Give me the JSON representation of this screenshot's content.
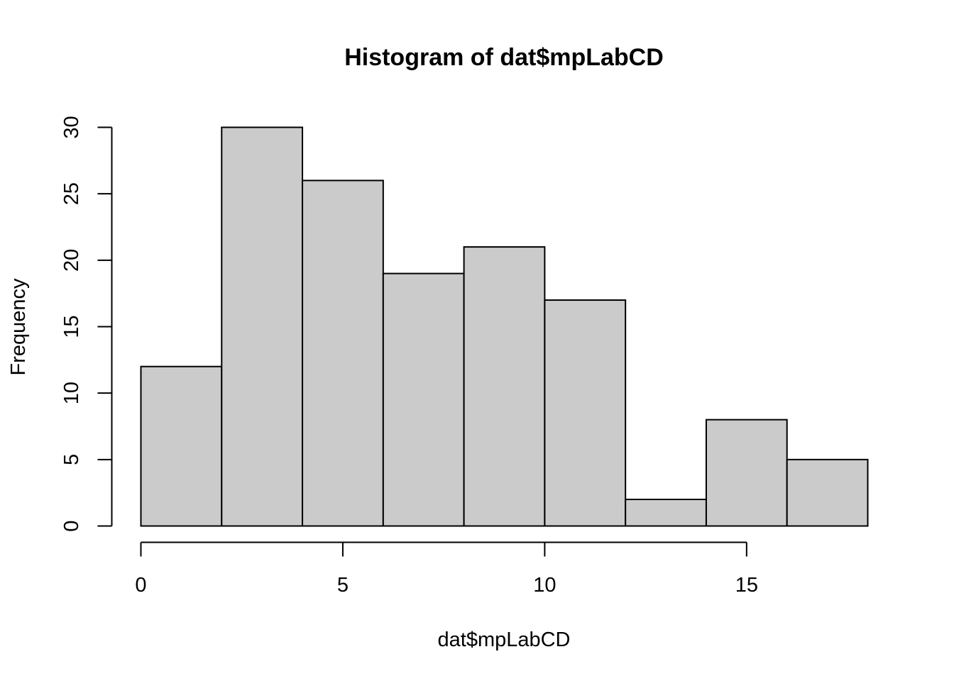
{
  "chart_data": {
    "type": "bar",
    "title": "Histogram of dat$mpLabCD",
    "xlabel": "dat$mpLabCD",
    "ylabel": "Frequency",
    "bins": [
      {
        "from": 0,
        "to": 2,
        "count": 12
      },
      {
        "from": 2,
        "to": 4,
        "count": 30
      },
      {
        "from": 4,
        "to": 6,
        "count": 26
      },
      {
        "from": 6,
        "to": 8,
        "count": 19
      },
      {
        "from": 8,
        "to": 10,
        "count": 21
      },
      {
        "from": 10,
        "to": 12,
        "count": 17
      },
      {
        "from": 12,
        "to": 14,
        "count": 2
      },
      {
        "from": 14,
        "to": 16,
        "count": 8
      },
      {
        "from": 16,
        "to": 18,
        "count": 5
      }
    ],
    "xticks": [
      "0",
      "5",
      "10",
      "15"
    ],
    "yticks": [
      "0",
      "5",
      "10",
      "15",
      "20",
      "25",
      "30"
    ],
    "xlim": [
      0,
      18
    ],
    "ylim": [
      0,
      30
    ],
    "bar_fill": "#cbcbcb",
    "bar_stroke": "#000000",
    "grid": false
  }
}
